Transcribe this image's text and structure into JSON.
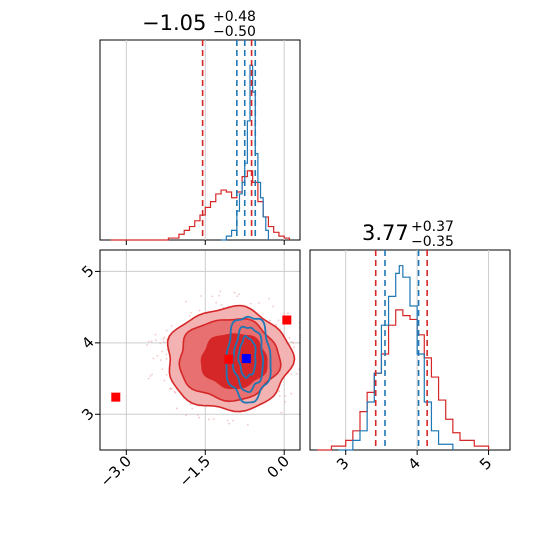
{
  "chart_data": [
    {
      "panel": "top-left",
      "type": "histogram",
      "title": {
        "main": "−1.05",
        "sup": "+0.48",
        "sub": "−0.50"
      },
      "xlim": [
        -3.5,
        0.3
      ],
      "grid": true,
      "series": [
        {
          "color": "#d62728",
          "x": [
            -3.3,
            -2.2,
            -2.0,
            -1.9,
            -1.8,
            -1.7,
            -1.6,
            -1.5,
            -1.4,
            -1.3,
            -1.2,
            -1.1,
            -1.0,
            -0.9,
            -0.8,
            -0.7,
            -0.6,
            -0.5,
            -0.4,
            -0.3,
            -0.2,
            -0.1,
            0.0,
            0.1
          ],
          "y": [
            0,
            0.01,
            0.03,
            0.05,
            0.07,
            0.1,
            0.13,
            0.17,
            0.2,
            0.24,
            0.26,
            0.25,
            0.22,
            0.25,
            0.33,
            0.36,
            0.3,
            0.2,
            0.12,
            0.07,
            0.04,
            0.02,
            0.01,
            0
          ]
        },
        {
          "color": "#1f77b4",
          "x": [
            -1.2,
            -1.1,
            -1.0,
            -0.9,
            -0.85,
            -0.8,
            -0.75,
            -0.7,
            -0.65,
            -0.6,
            -0.55,
            -0.5,
            -0.45,
            -0.4,
            -0.35,
            -0.3
          ],
          "y": [
            0,
            0.02,
            0.05,
            0.15,
            0.24,
            0.3,
            0.4,
            0.62,
            0.91,
            0.77,
            0.45,
            0.3,
            0.22,
            0.12,
            0.05,
            0
          ]
        }
      ],
      "vlines": [
        {
          "x": -1.55,
          "color": "#d62728"
        },
        {
          "x": -0.62,
          "color": "#d62728"
        },
        {
          "x": -0.9,
          "color": "#1f77b4"
        },
        {
          "x": -0.55,
          "color": "#1f77b4"
        },
        {
          "x": -0.75,
          "color": "#1f77b4"
        }
      ]
    },
    {
      "panel": "bottom-left",
      "type": "scatter",
      "xlim": [
        -3.5,
        0.3
      ],
      "ylim": [
        2.5,
        5.3
      ],
      "xticks": [
        "−3.0",
        "−1.5",
        "0.0"
      ],
      "xtick_values": [
        -3.0,
        -1.5,
        0.0
      ],
      "yticks": [
        "3",
        "4",
        "5"
      ],
      "ytick_values": [
        3,
        4,
        5
      ],
      "grid": true,
      "red_contours": [
        {
          "cx": -1.05,
          "cy": 3.77,
          "rx": 1.18,
          "ry": 0.72,
          "fill": "#f4b3b3"
        },
        {
          "cx": -1.05,
          "cy": 3.77,
          "rx": 0.95,
          "ry": 0.57,
          "fill": "#e87070"
        },
        {
          "cx": -0.95,
          "cy": 3.75,
          "rx": 0.62,
          "ry": 0.38,
          "fill": "#d62728"
        }
      ],
      "blue_contours": [
        {
          "cx": -0.68,
          "cy": 3.78,
          "rx": 0.42,
          "ry": 0.6
        },
        {
          "cx": -0.68,
          "cy": 3.78,
          "rx": 0.28,
          "ry": 0.45
        },
        {
          "cx": -0.7,
          "cy": 3.8,
          "rx": 0.16,
          "ry": 0.28
        }
      ],
      "markers": [
        {
          "x": 0.05,
          "y": 4.32,
          "color": "#ff0000"
        },
        {
          "x": -1.05,
          "y": 3.77,
          "color": "#ff0000"
        },
        {
          "x": -3.2,
          "y": 3.24,
          "color": "#ff0000"
        },
        {
          "x": -0.72,
          "y": 3.78,
          "color": "#0000ff"
        }
      ]
    },
    {
      "panel": "bottom-right",
      "type": "histogram",
      "title": {
        "main": "3.77",
        "sup": "+0.37",
        "sub": "−0.35"
      },
      "xlim": [
        2.5,
        5.3
      ],
      "xticks": [
        "3",
        "4",
        "5"
      ],
      "xtick_values": [
        3,
        4,
        5
      ],
      "grid": true,
      "series": [
        {
          "color": "#d62728",
          "x": [
            2.6,
            2.8,
            3.0,
            3.1,
            3.2,
            3.3,
            3.4,
            3.5,
            3.6,
            3.7,
            3.8,
            3.9,
            4.0,
            4.1,
            4.2,
            4.3,
            4.4,
            4.5,
            4.6,
            4.8,
            5.0
          ],
          "y": [
            0,
            0.02,
            0.05,
            0.1,
            0.2,
            0.3,
            0.4,
            0.5,
            0.65,
            0.73,
            0.7,
            0.68,
            0.6,
            0.48,
            0.38,
            0.26,
            0.16,
            0.09,
            0.05,
            0.02,
            0
          ]
        },
        {
          "color": "#1f77b4",
          "x": [
            2.9,
            3.1,
            3.2,
            3.3,
            3.4,
            3.5,
            3.6,
            3.7,
            3.75,
            3.8,
            3.9,
            4.0,
            4.1,
            4.2,
            4.3,
            4.5
          ],
          "y": [
            0,
            0.05,
            0.1,
            0.25,
            0.4,
            0.65,
            0.8,
            0.92,
            0.96,
            0.9,
            0.75,
            0.5,
            0.25,
            0.1,
            0.03,
            0
          ]
        }
      ],
      "vlines": [
        {
          "x": 3.42,
          "color": "#d62728"
        },
        {
          "x": 4.14,
          "color": "#d62728"
        },
        {
          "x": 3.55,
          "color": "#1f77b4"
        },
        {
          "x": 4.02,
          "color": "#1f77b4"
        }
      ]
    }
  ]
}
